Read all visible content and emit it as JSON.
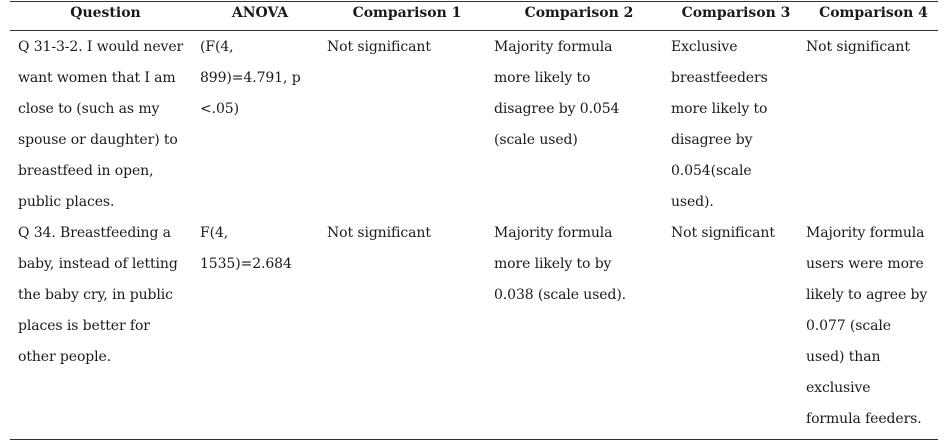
{
  "table": {
    "headers": [
      "Question",
      "ANOVA",
      "Comparison 1",
      "Comparison 2",
      "Comparison 3",
      "Comparison 4"
    ],
    "rows": [
      {
        "question": "Q 31-3-2. I would never\nwant women that I am\nclose to (such as my\nspouse or daughter) to\nbreastfeed in open,\npublic places.",
        "anova": "(F(4,\n899)=4.791, p\n<.05)",
        "comparison1": "Not significant",
        "comparison2": "Majority formula\nmore likely to\ndisagree by 0.054\n(scale used)",
        "comparison3": "Exclusive\nbreastfeeders\nmore likely to\ndisagree by\n0.054(scale\nused).",
        "comparison4": "Not significant"
      },
      {
        "question": "Q 34. Breastfeeding a\nbaby, instead of letting\nthe baby cry, in public\nplaces is better for\nother people.",
        "anova": "F(4,\n1535)=2.684",
        "comparison1": "Not significant",
        "comparison2": "Majority formula\nmore likely to by\n0.038 (scale used).",
        "comparison3": "Not significant",
        "comparison4": "Majority formula\nusers were more\nlikely to agree by\n0.077 (scale\nused) than\nexclusive\nformula feeders."
      }
    ]
  }
}
